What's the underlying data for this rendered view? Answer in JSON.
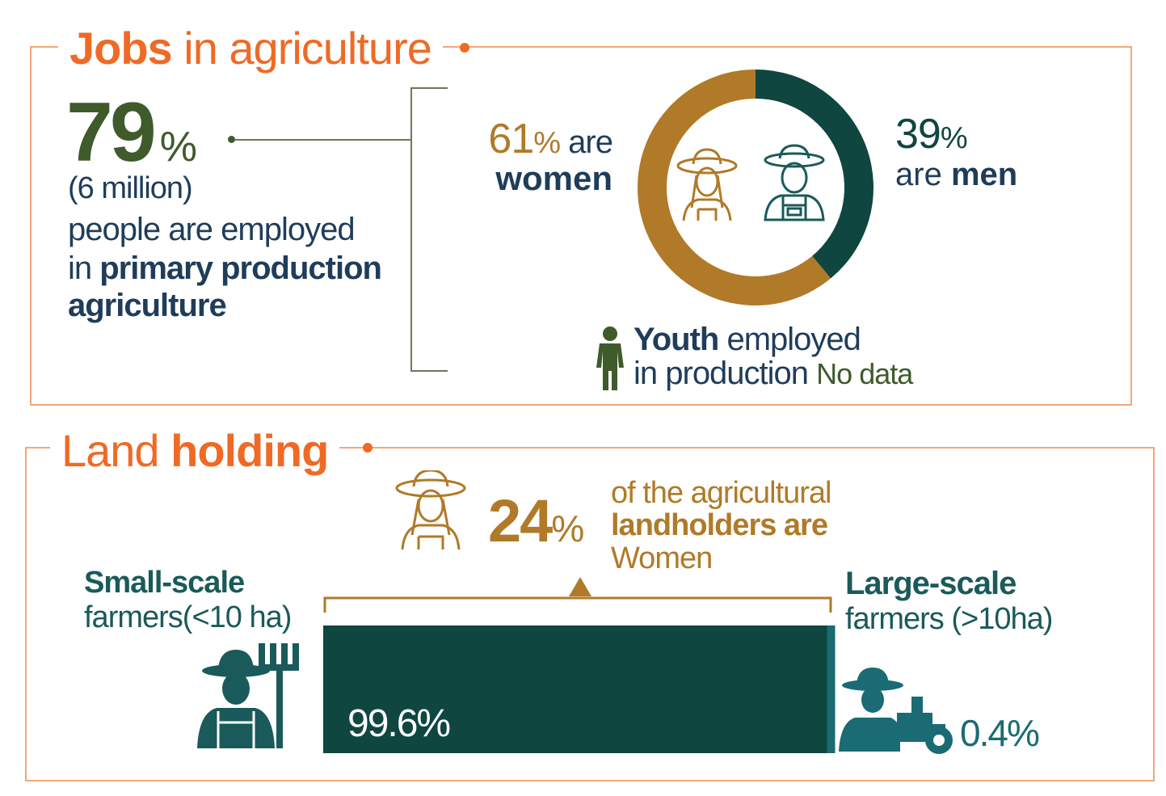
{
  "jobs": {
    "title_bold": "Jobs",
    "title_rest": " in agriculture",
    "percent_value": "79",
    "percent_sign": "%",
    "count": "(6 million)",
    "desc_line1": "people are employed",
    "desc_line2_plain": "in ",
    "desc_line2_bold": "primary production",
    "desc_line3": "agriculture",
    "women_pct": "61",
    "women_pct_sign": "%",
    "women_are": " are",
    "women_label": "women",
    "men_pct": "39",
    "men_pct_sign": "%",
    "men_are": "are ",
    "men_label": "men",
    "youth_bold": "Youth",
    "youth_rest": " employed",
    "youth_line2": "in production",
    "youth_nodata": "No data"
  },
  "land": {
    "title_plain": "Land ",
    "title_bold": "holding",
    "women_pct": "24",
    "women_pct_sign": "%",
    "women_line1": "of the agricultural",
    "women_line2": "landholders are",
    "women_line3": "Women",
    "small_line1": "Small-scale",
    "small_line2": "farmers(<10 ha)",
    "large_line1": "Large-scale",
    "large_line2": "farmers (>10ha)",
    "small_value_label": "99.6%",
    "large_value_label": "0.4%"
  },
  "icons": [
    "woman-farmer-icon",
    "man-farmer-icon",
    "youth-person-icon",
    "farmer-rake-icon",
    "farmer-tractor-icon"
  ],
  "colors": {
    "accent": "#ef6a25",
    "frame": "#f4a77a",
    "women": "#b07a28",
    "men": "#0f4640",
    "bar": "#0f4640",
    "bar_large": "#1a6b73",
    "olive": "#3f5a2b",
    "navy": "#1f3d5a"
  },
  "chart_data": [
    {
      "type": "pie",
      "categories": [
        "women",
        "men"
      ],
      "values": [
        61,
        39
      ],
      "colors": [
        "#b07a28",
        "#0f4640"
      ]
    },
    {
      "type": "bar",
      "categories": [
        "Small-scale farmers(<10 ha)",
        "Large-scale farmers (>10ha)"
      ],
      "values": [
        99.6,
        0.4
      ],
      "colors": [
        "#0f4640",
        "#1a6b73"
      ]
    }
  ]
}
